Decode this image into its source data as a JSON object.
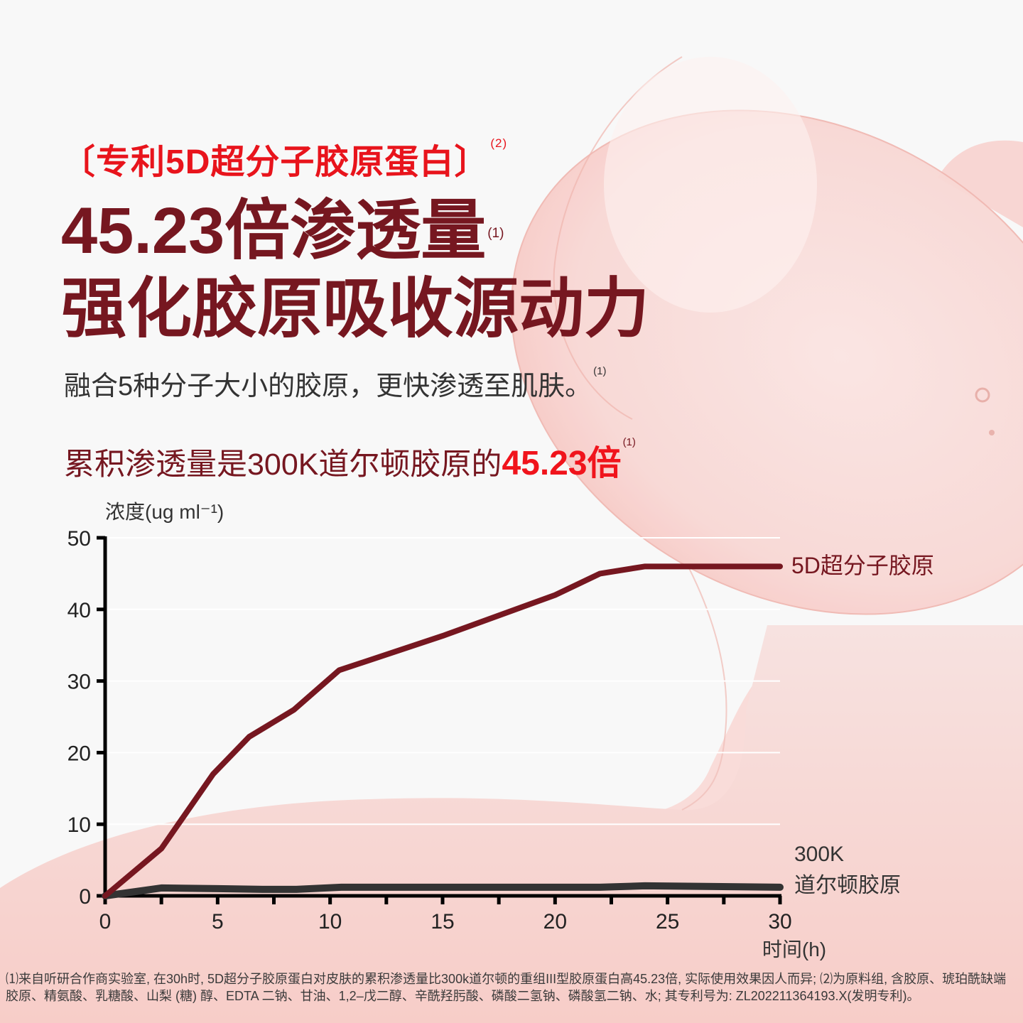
{
  "header": {
    "tag_line": "〔专利5D超分子胶原蛋白〕",
    "tag_note": "(2)",
    "headline_line1": "45.23倍渗透量",
    "headline_note": "(1)",
    "headline_line2": "强化胶原吸收源动力",
    "subtitle": "融合5种分子大小的胶原，更快渗透至肌肤。",
    "subtitle_note": "(1)",
    "stat_prefix": "累积渗透量是300K道尔顿胶原的",
    "stat_highlight": "45.23倍",
    "stat_note": "(1)"
  },
  "colors": {
    "accent_red": "#e8141c",
    "brand_maroon": "#761720",
    "series_5d": "#761720",
    "series_300k": "#333333",
    "background": "#f8f8f8",
    "bubble_pink": "#f8d2cf"
  },
  "chart_data": {
    "type": "line",
    "title": "",
    "xlabel": "时间(h)",
    "ylabel": "浓度(ug ml⁻¹)",
    "xlim": [
      0,
      30
    ],
    "ylim": [
      0,
      50
    ],
    "x_ticks": [
      0,
      5,
      10,
      15,
      20,
      25,
      30
    ],
    "x_minor_ticks": [
      2.5,
      7.5,
      12.5,
      17.5,
      22.5,
      27.5
    ],
    "y_ticks": [
      0,
      10,
      20,
      30,
      40,
      50
    ],
    "grid": true,
    "legend_position": "inline-right",
    "series": [
      {
        "name": "5D超分子胶原",
        "x": [
          0,
          2.5,
          4.8,
          6.4,
          8.4,
          10.4,
          15,
          20,
          22,
          24,
          30
        ],
        "values": [
          0,
          6.6,
          17,
          22.2,
          26,
          31.5,
          36.3,
          42,
          45,
          46,
          46
        ]
      },
      {
        "name": "300K 道尔顿胶原",
        "x": [
          0,
          2.5,
          5,
          7,
          8.5,
          10.5,
          15,
          20,
          22,
          24,
          30
        ],
        "values": [
          0,
          1.1,
          1.0,
          0.9,
          0.9,
          1.2,
          1.2,
          1.2,
          1.2,
          1.4,
          1.2
        ]
      }
    ],
    "series_labels": {
      "s1": "5D超分子胶原",
      "s2_line1": "300K",
      "s2_line2": "道尔顿胶原"
    },
    "tick_labels": {
      "y": [
        "0",
        "10",
        "20",
        "30",
        "40",
        "50"
      ],
      "x": [
        "0",
        "5",
        "10",
        "15",
        "20",
        "25",
        "30"
      ]
    }
  },
  "footnote": {
    "text": "⑴来自听研合作商实验室, 在30h时, 5D超分子胶原蛋白对皮肤的累积渗透量比300k道尔顿的重组III型胶原蛋白高45.23倍, 实际使用效果因人而异; ⑵为原料组, 含胶原、琥珀酰缺端胶原、精氨酸、乳糖酸、山梨 (糖) 醇、EDTA 二钠、甘油、1,2–戊二醇、辛酰羟肟酸、磷酸二氢钠、磷酸氢二钠、水; 其专利号为: ZL202211364193.X(发明专利)。"
  }
}
